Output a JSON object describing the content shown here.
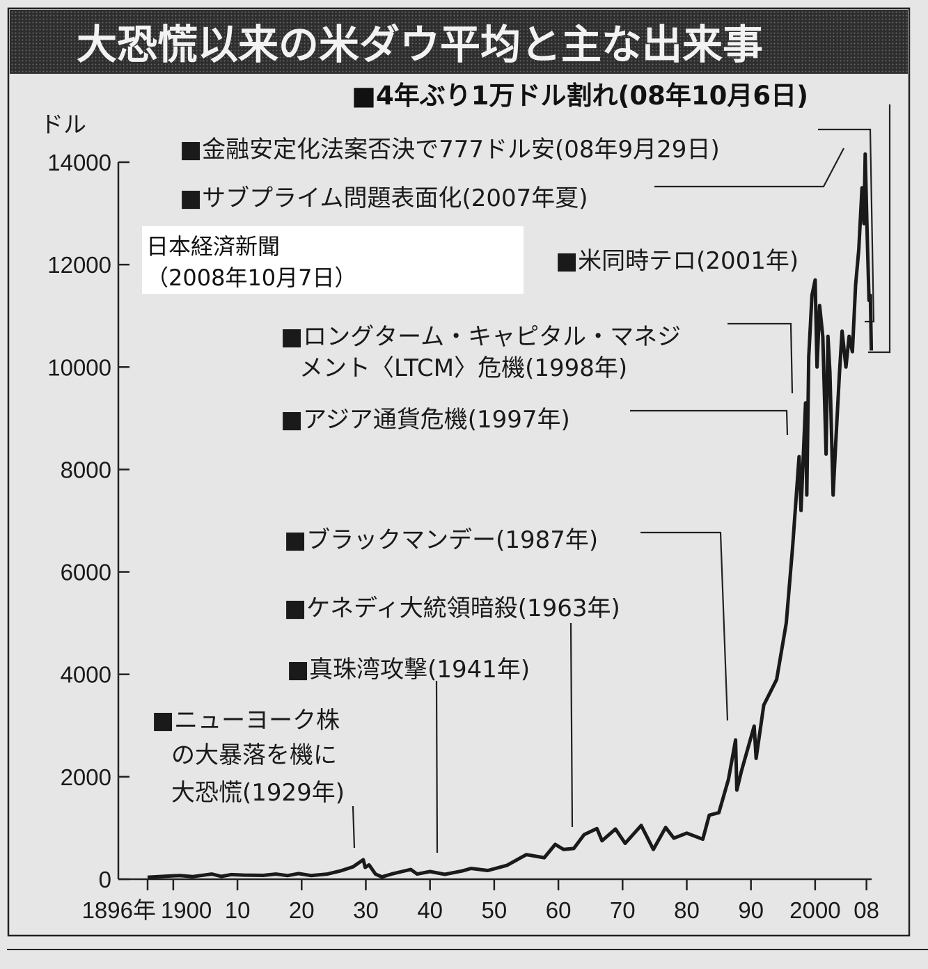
{
  "title": "大恐慌以来の米ダウ平均と主な出来事",
  "source": {
    "line1": "日本経済新聞",
    "line2": "（2008年10月7日）"
  },
  "colors": {
    "background": "#e6e6e6",
    "banner": "#2e2e2e",
    "line": "#1a1a1a"
  },
  "chart_data": {
    "type": "line",
    "title": "大恐慌以来の米ダウ平均と主な出来事",
    "ylabel": "ドル",
    "xlabel": "",
    "ylim": [
      0,
      14000
    ],
    "xlim": [
      1896,
      2008.8
    ],
    "yticks": [
      "0",
      "2000",
      "4000",
      "6000",
      "8000",
      "10000",
      "12000",
      "14000"
    ],
    "ytick_values": [
      0,
      2000,
      4000,
      6000,
      8000,
      10000,
      12000,
      14000
    ],
    "xticks": [
      "1896年",
      "1900",
      "10",
      "20",
      "30",
      "40",
      "50",
      "60",
      "70",
      "80",
      "90",
      "2000",
      "08"
    ],
    "xtick_values": [
      1896,
      1900,
      1910,
      1920,
      1930,
      1940,
      1950,
      1960,
      1970,
      1980,
      1990,
      2000,
      2008
    ],
    "grid": false,
    "series": [
      {
        "x": [
          1896,
          1899,
          1901,
          1903,
          1906,
          1907.5,
          1909,
          1911,
          1914,
          1916,
          1917.8,
          1919.5,
          1921.5,
          1924,
          1926,
          1928,
          1929.6,
          1929.9,
          1930.5,
          1931.5,
          1932.5,
          1934,
          1937,
          1938,
          1940,
          1942.3,
          1945,
          1946.4,
          1949,
          1952,
          1955,
          1957.8,
          1959.5,
          1960.8,
          1962.4,
          1964,
          1966,
          1966.8,
          1968.9,
          1970.4,
          1972.9,
          1974.8,
          1976.7,
          1978,
          1980,
          1982.5,
          1983.5,
          1985,
          1986.5,
          1987.6,
          1987.8,
          1988.5,
          1990.5,
          1990.8,
          1992,
          1994,
          1995.5,
          1996.5,
          1997.5,
          1997.8,
          1998.5,
          1998.7,
          1999,
          1999.5,
          2000,
          2000.3,
          2000.7,
          2001.2,
          2001.7,
          2002,
          2002.3,
          2002.8,
          2003.2,
          2003.8,
          2004.2,
          2004.8,
          2005.3,
          2005.8,
          2006.3,
          2006.8,
          2007.3,
          2007.6,
          2007.8,
          2008.1,
          2008.4,
          2008.6,
          2008.75
        ],
        "y": [
          40,
          60,
          70,
          50,
          100,
          55,
          90,
          80,
          75,
          100,
          70,
          110,
          70,
          100,
          160,
          240,
          381,
          230,
          280,
          100,
          45,
          100,
          190,
          100,
          150,
          95,
          160,
          210,
          170,
          270,
          480,
          420,
          680,
          580,
          600,
          870,
          990,
          750,
          980,
          700,
          1050,
          580,
          1010,
          800,
          900,
          780,
          1250,
          1300,
          1950,
          2720,
          1740,
          2100,
          2990,
          2360,
          3400,
          3900,
          5000,
          6500,
          8250,
          7200,
          9300,
          7500,
          10200,
          11400,
          11700,
          10000,
          11200,
          10600,
          8300,
          10600,
          9900,
          7500,
          8500,
          9900,
          10700,
          10000,
          10600,
          10300,
          11600,
          12300,
          13500,
          12800,
          14160,
          12600,
          11300,
          11400,
          10325
        ]
      }
    ]
  },
  "annotations": [
    {
      "lines": [
        "■4年ぶり1万ドル割れ(08年10月6日)"
      ]
    },
    {
      "lines": [
        "■金融安定化法案否決で777ドル安(08年9月29日)"
      ]
    },
    {
      "lines": [
        "■サブプライム問題表面化(2007年夏)"
      ]
    },
    {
      "lines": [
        "■米同時テロ(2001年)"
      ]
    },
    {
      "lines": [
        "■ロングターム・キャピタル・マネジ",
        "メント〈LTCM〉危機(1998年)"
      ]
    },
    {
      "lines": [
        "■アジア通貨危機(1997年)"
      ]
    },
    {
      "lines": [
        "■ブラックマンデー(1987年)"
      ]
    },
    {
      "lines": [
        "■ケネディ大統領暗殺(1963年)"
      ]
    },
    {
      "lines": [
        "■真珠湾攻撃(1941年)"
      ]
    },
    {
      "lines": [
        "■ニューヨーク株",
        "の大暴落を機に",
        "大恐慌(1929年)"
      ]
    }
  ]
}
